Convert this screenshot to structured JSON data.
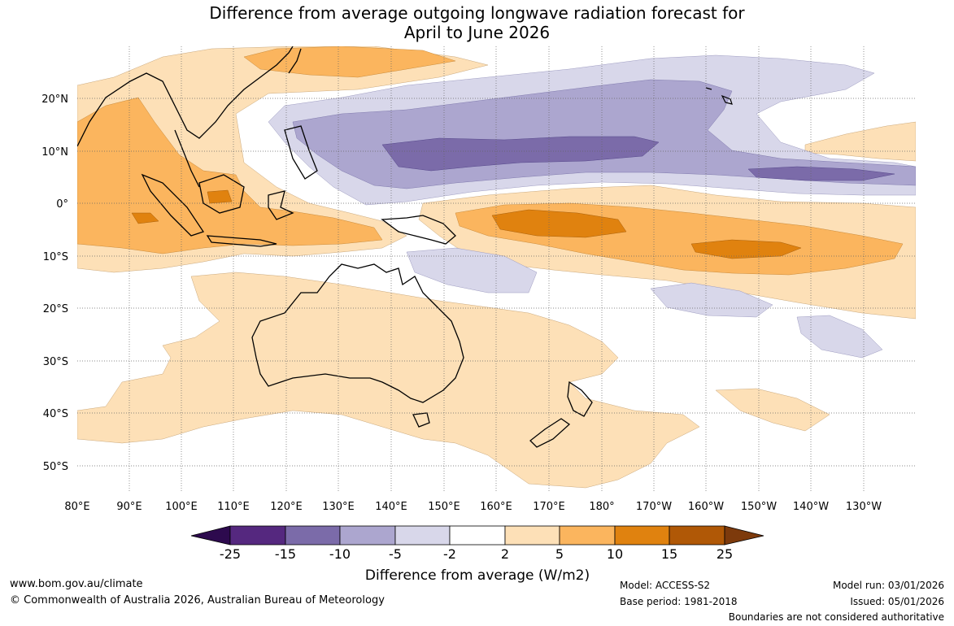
{
  "title": {
    "line1": "Difference from average outgoing longwave radiation forecast for",
    "line2": "April to June 2026"
  },
  "map": {
    "lat_labels": [
      "20°N",
      "10°N",
      "0°",
      "10°S",
      "20°S",
      "30°S",
      "40°S",
      "50°S"
    ],
    "lon_labels": [
      "80°E",
      "90°E",
      "100°E",
      "110°E",
      "120°E",
      "130°E",
      "140°E",
      "150°E",
      "160°E",
      "170°E",
      "180°",
      "170°W",
      "160°W",
      "150°W",
      "140°W",
      "130°W"
    ]
  },
  "colorbar": {
    "ticks": [
      "-25",
      "-15",
      "-10",
      "-5",
      "-2",
      "2",
      "5",
      "10",
      "15",
      "25"
    ],
    "colors": [
      "#2d0a4e",
      "#55287f",
      "#7b6ba9",
      "#aca6cf",
      "#d8d7ea",
      "#ffffff",
      "#fde0b7",
      "#fbb55e",
      "#e0820f",
      "#b05806",
      "#7d3a0c"
    ],
    "label": "Difference from average (W/m2)"
  },
  "footer": {
    "website": "www.bom.gov.au/climate",
    "copyright": "© Commonwealth of Australia 2026, Australian Bureau of Meteorology",
    "model": "Model: ACCESS-S2",
    "base_period": "Base period: 1981-2018",
    "model_run": "Model run: 03/01/2026",
    "issued": "Issued: 05/01/2026",
    "boundaries": "Boundaries are not considered authoritative"
  }
}
